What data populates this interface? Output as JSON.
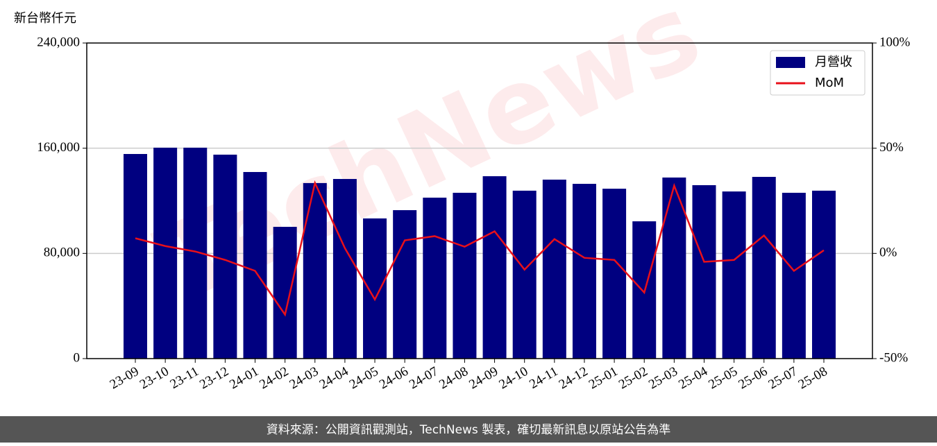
{
  "chart_data": {
    "type": "bar",
    "y_label": "新台幣仟元",
    "watermark": "TechNews",
    "footer": "資料來源：公開資訊觀測站，TechNews 製表，確切最新訊息以原站公告為準",
    "categories": [
      "23-09",
      "23-10",
      "23-11",
      "23-12",
      "24-01",
      "24-02",
      "24-03",
      "24-04",
      "24-05",
      "24-06",
      "24-07",
      "24-08",
      "24-09",
      "24-10",
      "24-11",
      "24-12",
      "25-01",
      "25-02",
      "25-03",
      "25-04",
      "25-05",
      "25-06",
      "25-07",
      "25-08"
    ],
    "series": [
      {
        "name": "月營收",
        "type": "bar",
        "color": "#000080",
        "values": [
          155600,
          160400,
          160400,
          155100,
          141900,
          100200,
          133500,
          136600,
          106600,
          112900,
          122400,
          126100,
          138700,
          127700,
          136100,
          132900,
          129200,
          104400,
          137700,
          131900,
          127100,
          138200,
          126100,
          127700
        ]
      },
      {
        "name": "MoM",
        "type": "line",
        "axis": "y2",
        "color": "#e8101a",
        "values": [
          7.2,
          3.5,
          0.9,
          -3.1,
          -8.3,
          -29.1,
          33.5,
          2.5,
          -21.9,
          6.2,
          8.2,
          3.2,
          10.5,
          -7.7,
          6.8,
          -2.1,
          -3.1,
          -18.6,
          32.2,
          -4.0,
          -3.1,
          8.5,
          -8.3,
          1.5
        ]
      }
    ],
    "ylim": [
      0,
      240000
    ],
    "yticks": [
      0,
      {
        "value": 80000,
        "label": "80,000"
      },
      {
        "value": 160000,
        "label": "160,000"
      },
      {
        "value": 240000,
        "label": "240,000"
      }
    ],
    "y2lim": [
      -50,
      100
    ],
    "y2ticks": [
      {
        "value": -50,
        "label": "-50%"
      },
      {
        "value": 0,
        "label": "0%"
      },
      {
        "value": 50,
        "label": "50%"
      },
      {
        "value": 100,
        "label": "100%"
      }
    ],
    "grid": true,
    "legend": "upper right"
  }
}
